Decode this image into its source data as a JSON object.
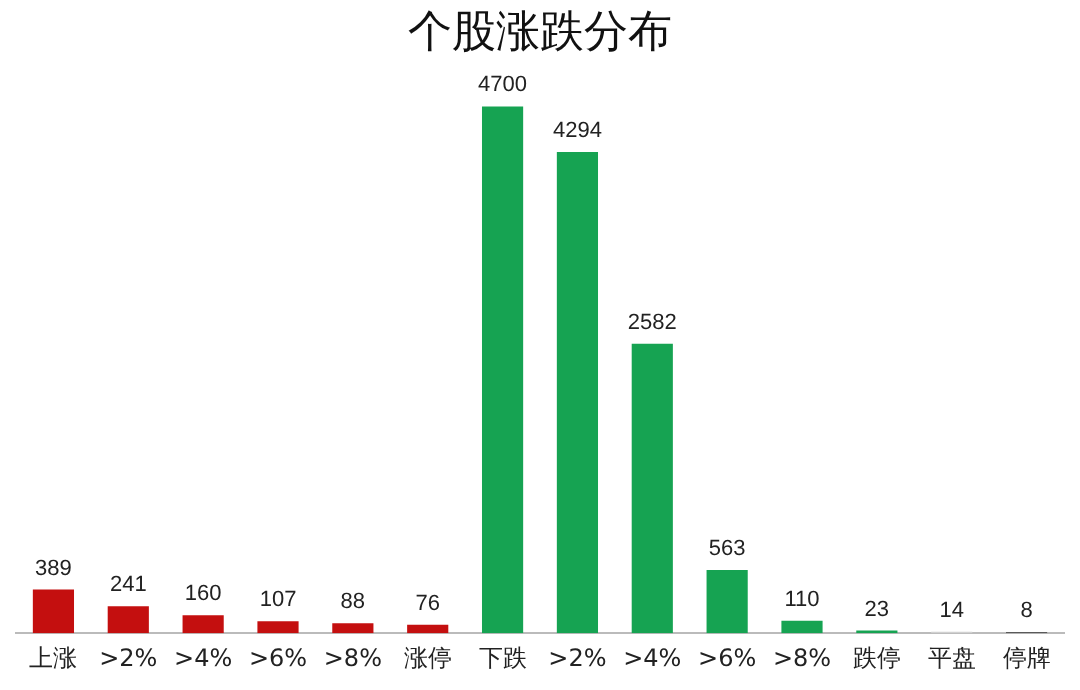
{
  "chart_data": {
    "type": "bar",
    "title": "个股涨跌分布",
    "categories": [
      "上涨",
      ">2%",
      ">4%",
      ">6%",
      ">8%",
      "涨停",
      "下跌",
      ">2%",
      ">4%",
      ">6%",
      ">8%",
      "跌停",
      "平盘",
      "停牌"
    ],
    "values": [
      389,
      241,
      160,
      107,
      88,
      76,
      4700,
      4294,
      2582,
      563,
      110,
      23,
      14,
      8
    ],
    "colors": [
      "#c40f0f",
      "#c40f0f",
      "#c40f0f",
      "#c40f0f",
      "#c40f0f",
      "#c40f0f",
      "#16a352",
      "#16a352",
      "#16a352",
      "#16a352",
      "#16a352",
      "#16a352",
      "#d0d0d0",
      "#3a3a3a"
    ],
    "data_labels": true,
    "grid": false,
    "legend": false
  }
}
